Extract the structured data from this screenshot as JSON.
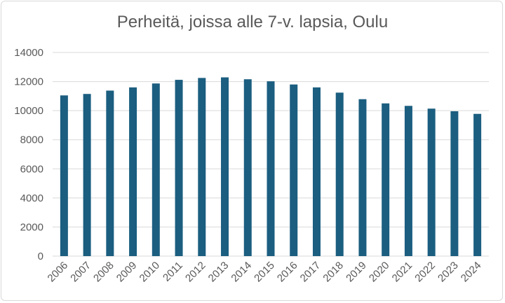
{
  "chart_data": {
    "type": "bar",
    "title": "Perheitä, joissa alle 7-v. lapsia, Oulu",
    "xlabel": "",
    "ylabel": "",
    "categories": [
      "2006",
      "2007",
      "2008",
      "2009",
      "2010",
      "2011",
      "2012",
      "2013",
      "2014",
      "2015",
      "2016",
      "2017",
      "2018",
      "2019",
      "2020",
      "2021",
      "2022",
      "2023",
      "2024"
    ],
    "values": [
      11050,
      11150,
      11380,
      11600,
      11870,
      12120,
      12250,
      12290,
      12160,
      12020,
      11800,
      11600,
      11240,
      10790,
      10500,
      10330,
      10140,
      9960,
      9780
    ],
    "ylim": [
      0,
      14000
    ],
    "yticks": [
      0,
      2000,
      4000,
      6000,
      8000,
      10000,
      12000,
      14000
    ],
    "grid": true,
    "legend": "none",
    "colors": {
      "bar": "#1b5e80",
      "grid": "#d9d9d9",
      "text": "#595959"
    }
  }
}
